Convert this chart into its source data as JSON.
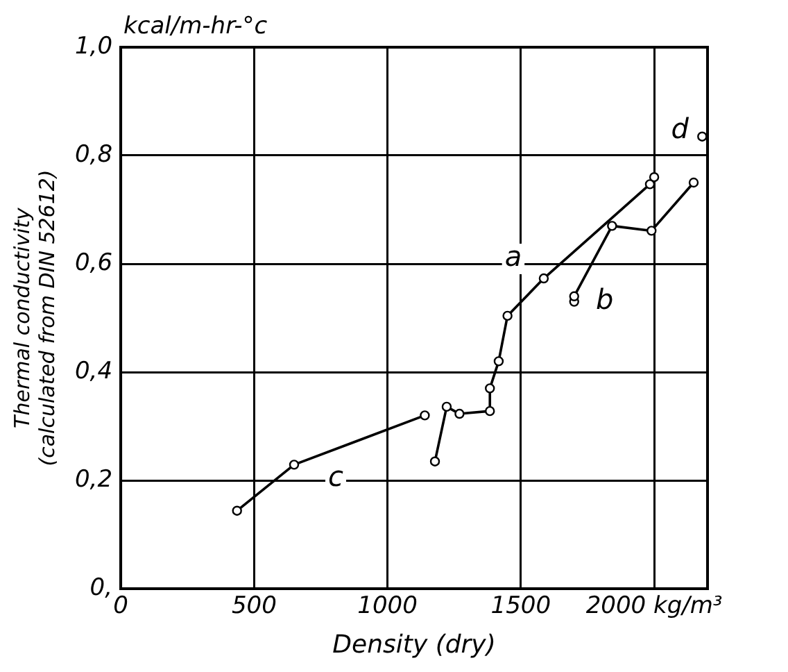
{
  "chart_data": {
    "type": "line",
    "xlabel": "Density (dry)",
    "ylabel": "Thermal conductivity\n(calculated from DIN 52612)",
    "xlim": [
      0,
      2200
    ],
    "ylim": [
      0,
      1.0
    ],
    "xticks": [
      0,
      500,
      1000,
      1500,
      {
        "value": 2000,
        "label": "2000 kg/m³"
      }
    ],
    "yticks": [
      {
        "value": 0,
        "label": "0,"
      },
      {
        "value": 0.2,
        "label": "0,2"
      },
      {
        "value": 0.4,
        "label": "0,4"
      },
      {
        "value": 0.6,
        "label": "0,6"
      },
      {
        "value": 0.8,
        "label": "0,8"
      },
      {
        "value": 1.0,
        "label": "1,0"
      }
    ],
    "grid": true,
    "legend": false,
    "marker": "circle",
    "line_style": "solid",
    "series": [
      {
        "name": "c",
        "color": "#000000",
        "x": [
          436,
          650,
          1140
        ],
        "values": [
          0.144,
          0.229,
          0.32
        ]
      },
      {
        "name": "a",
        "color": "#000000",
        "x": [
          1178,
          1222,
          1270,
          1384,
          1384,
          1417,
          1450,
          1586,
          1984,
          2000
        ],
        "values": [
          0.235,
          0.336,
          0.323,
          0.328,
          0.37,
          0.42,
          0.504,
          0.573,
          0.747,
          0.76
        ]
      },
      {
        "name": "b",
        "color": "#000000",
        "x": [
          1700,
          1700,
          1842,
          1990,
          2148
        ],
        "values": [
          0.53,
          0.54,
          0.67,
          0.661,
          0.75
        ]
      },
      {
        "name": "d",
        "type": "scatter",
        "color": "#000000",
        "x": [
          2180
        ],
        "values": [
          0.835
        ]
      }
    ],
    "annotations": [
      "kcal/m-hr-°c"
    ]
  }
}
